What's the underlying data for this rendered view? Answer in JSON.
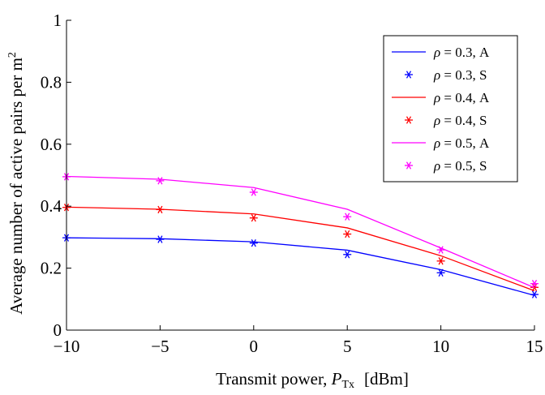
{
  "chart_data": {
    "type": "line",
    "title": "",
    "xlabel_parts": {
      "prefix": "Transmit power, ",
      "symbol": "P",
      "subscript": "Tx",
      "unit": "[dBm]"
    },
    "ylabel_parts": {
      "text": "Average number of active pairs per m",
      "superscript": "2"
    },
    "xlim": [
      -10,
      15
    ],
    "ylim": [
      0,
      1
    ],
    "xticks": [
      -10,
      -5,
      0,
      5,
      10,
      15
    ],
    "xtick_labels": [
      "−10",
      "−5",
      "0",
      "5",
      "10",
      "15"
    ],
    "yticks": [
      0,
      0.2,
      0.4,
      0.6,
      0.8,
      1
    ],
    "ytick_labels": [
      "0",
      "0.2",
      "0.4",
      "0.6",
      "0.8",
      "1"
    ],
    "grid": false,
    "legend_position": "top-right",
    "x": [
      -10,
      -5,
      0,
      5,
      10,
      15
    ],
    "series": [
      {
        "name": "ρ = 0.3, A",
        "style": "line",
        "color": "#0000ff",
        "values": [
          0.298,
          0.295,
          0.285,
          0.258,
          0.195,
          0.112
        ]
      },
      {
        "name": "ρ = 0.3, S",
        "style": "marker",
        "color": "#0000ff",
        "values": [
          0.298,
          0.293,
          0.281,
          0.244,
          0.185,
          0.115
        ]
      },
      {
        "name": "ρ = 0.4, A",
        "style": "line",
        "color": "#ff0000",
        "values": [
          0.397,
          0.39,
          0.375,
          0.33,
          0.24,
          0.127
        ]
      },
      {
        "name": "ρ = 0.4, S",
        "style": "marker",
        "color": "#ff0000",
        "values": [
          0.396,
          0.389,
          0.362,
          0.31,
          0.223,
          0.138
        ]
      },
      {
        "name": "ρ = 0.5, A",
        "style": "line",
        "color": "#ff00ff",
        "values": [
          0.496,
          0.487,
          0.46,
          0.39,
          0.265,
          0.137
        ]
      },
      {
        "name": "ρ = 0.5, S",
        "style": "marker",
        "color": "#ff00ff",
        "values": [
          0.495,
          0.482,
          0.445,
          0.366,
          0.259,
          0.15
        ]
      }
    ]
  }
}
